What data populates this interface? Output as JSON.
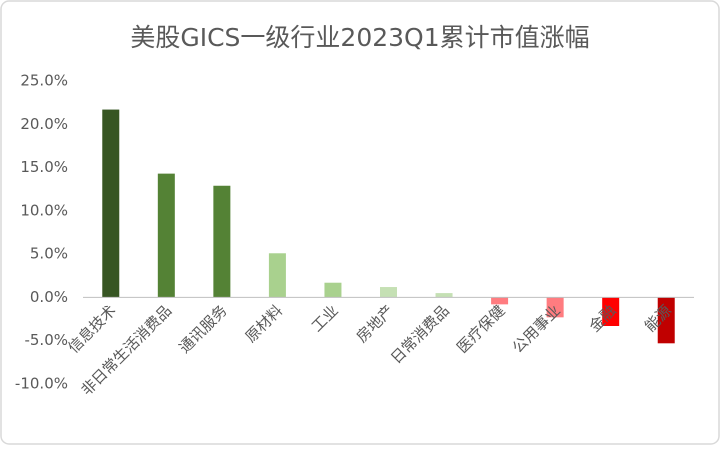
{
  "chart_data": {
    "type": "bar",
    "title": "美股GICS一级行业2023Q1累计市值涨幅",
    "categories": [
      "信息技术",
      "非日常生活消费品",
      "通讯服务",
      "原材料",
      "工业",
      "房地产",
      "日常消费品",
      "医疗保健",
      "公用事业",
      "金融",
      "能源"
    ],
    "values": [
      21.7,
      14.3,
      12.9,
      5.1,
      1.7,
      1.2,
      0.5,
      -0.8,
      -2.3,
      -3.3,
      -5.3
    ],
    "colors": [
      "#375623",
      "#548235",
      "#548235",
      "#a9d18e",
      "#a9d18e",
      "#c5e0b4",
      "#c5e0b4",
      "#ff7c80",
      "#ff7c80",
      "#ff0000",
      "#c00000"
    ],
    "ylim": [
      -10,
      25
    ],
    "yticks": [
      {
        "value": -10,
        "label": "-10.0%"
      },
      {
        "value": -5,
        "label": "-5.0%"
      },
      {
        "value": 0,
        "label": "0.0%"
      },
      {
        "value": 5,
        "label": "5.0%"
      },
      {
        "value": 10,
        "label": "10.0%"
      },
      {
        "value": 15,
        "label": "15.0%"
      },
      {
        "value": 20,
        "label": "20.0%"
      },
      {
        "value": 25,
        "label": "25.0%"
      }
    ],
    "grid": false
  }
}
